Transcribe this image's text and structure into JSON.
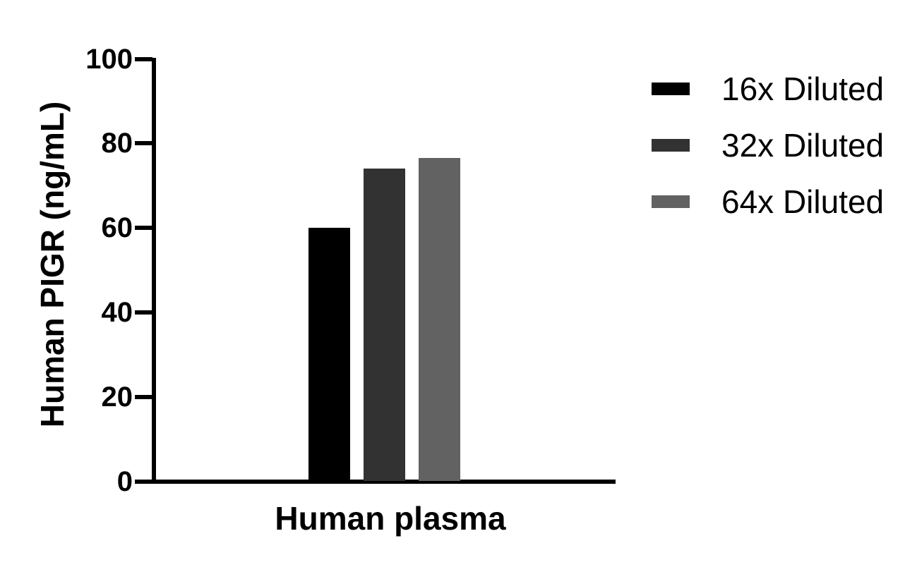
{
  "chart_data": {
    "type": "bar",
    "title": "",
    "xlabel": "Human plasma",
    "ylabel": "Human PIGR (ng/mL)",
    "categories": [
      "Human plasma"
    ],
    "series": [
      {
        "name": "16x Diluted",
        "color": "#000000",
        "values": [
          60.0
        ]
      },
      {
        "name": "32x Diluted",
        "color": "#323232",
        "values": [
          73.9
        ]
      },
      {
        "name": "64x Diluted",
        "color": "#626262",
        "values": [
          76.4
        ]
      }
    ],
    "ylim": [
      0,
      100
    ],
    "yticks": [
      0,
      20,
      40,
      60,
      80,
      100
    ],
    "grid": false,
    "legend_position": "right",
    "background_color": "#ffffff",
    "axis_color": "#000000"
  }
}
